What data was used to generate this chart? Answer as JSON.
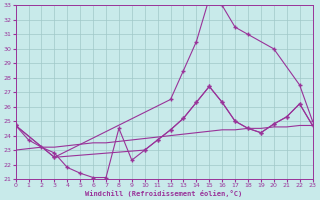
{
  "background_color": "#c8eaea",
  "grid_color": "#a0c8c8",
  "line_color": "#993399",
  "xlabel": "Windchill (Refroidissement éolien,°C)",
  "xlim": [
    0,
    23
  ],
  "ylim": [
    21,
    33
  ],
  "yticks": [
    21,
    22,
    23,
    24,
    25,
    26,
    27,
    28,
    29,
    30,
    31,
    32,
    33
  ],
  "xticks": [
    0,
    1,
    2,
    3,
    4,
    5,
    6,
    7,
    8,
    9,
    10,
    11,
    12,
    13,
    14,
    15,
    16,
    17,
    18,
    19,
    20,
    21,
    22,
    23
  ],
  "line1_x": [
    0,
    1,
    2,
    3,
    4,
    5,
    6,
    7,
    8,
    9,
    10,
    11,
    12,
    13,
    14,
    15,
    16,
    17,
    18,
    19,
    20,
    21,
    22,
    23
  ],
  "line1_y": [
    24.7,
    23.7,
    23.2,
    22.8,
    21.8,
    21.4,
    21.1,
    21.1,
    24.5,
    22.3,
    23.0,
    23.7,
    24.4,
    25.2,
    26.3,
    27.4,
    26.3,
    25.0,
    24.5,
    24.2,
    24.8,
    25.3,
    26.2,
    24.7
  ],
  "line2_x": [
    0,
    1,
    2,
    3,
    4,
    5,
    6,
    7,
    8,
    9,
    10,
    11,
    12,
    13,
    14,
    15,
    16,
    17,
    18,
    19,
    20,
    21,
    22,
    23
  ],
  "line2_y": [
    23.0,
    23.1,
    23.2,
    23.2,
    23.3,
    23.4,
    23.5,
    23.5,
    23.6,
    23.7,
    23.8,
    23.9,
    24.0,
    24.1,
    24.2,
    24.3,
    24.4,
    24.4,
    24.5,
    24.5,
    24.6,
    24.6,
    24.7,
    24.7
  ],
  "line3_x": [
    0,
    3,
    12,
    13,
    14,
    15,
    16,
    17,
    18,
    20,
    22,
    23
  ],
  "line3_y": [
    24.7,
    22.5,
    26.5,
    28.5,
    30.5,
    33.5,
    33.0,
    31.5,
    31.0,
    30.0,
    27.5,
    25.0
  ],
  "line4_x": [
    0,
    3,
    10,
    11,
    12,
    13,
    14,
    15,
    16,
    17,
    18,
    19,
    20,
    21,
    22,
    23
  ],
  "line4_y": [
    24.7,
    22.5,
    23.0,
    23.7,
    24.4,
    25.2,
    26.3,
    27.4,
    26.3,
    25.0,
    24.5,
    24.2,
    24.8,
    25.3,
    26.2,
    24.7
  ]
}
